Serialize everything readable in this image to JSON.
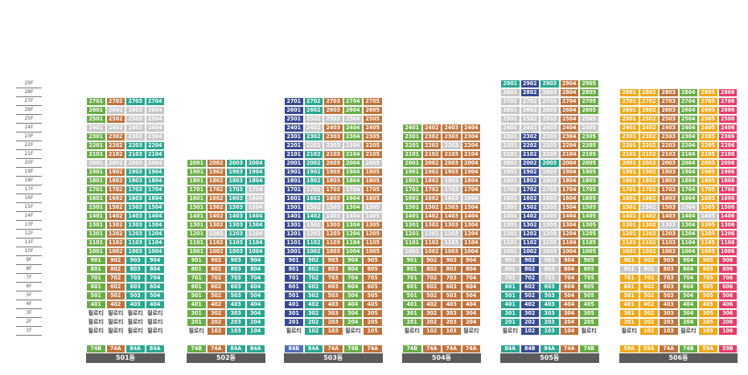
{
  "floors": [
    "29F",
    "28F",
    "27F",
    "26F",
    "25F",
    "24F",
    "23F",
    "22F",
    "21F",
    "20F",
    "19F",
    "18F",
    "17F",
    "16F",
    "15F",
    "14F",
    "13F",
    "12F",
    "11F",
    "10F",
    "9F",
    "8F",
    "7F",
    "6F",
    "5F",
    "4F",
    "3F",
    "2F",
    "1F"
  ],
  "pilotis_label": "필로티",
  "colors": {
    "orange": "#c0733c",
    "green": "#6aac46",
    "silver": "#c7c7c7",
    "teal": "#2aa792",
    "navy": "#3a4a91",
    "blue": "#4f6fb5",
    "yellow": "#f0a91b",
    "pink": "#e83e6c",
    "text": "#ffffff",
    "pilotis": "#ffffff",
    "name_bar": "#5b5b5b"
  },
  "buildings": [
    {
      "name": "501동",
      "top_floor": 27,
      "units": [
        "01",
        "02",
        "03",
        "04"
      ],
      "types": [
        [
          "74B",
          "green"
        ],
        [
          "74A",
          "orange"
        ],
        [
          "84A",
          "teal"
        ],
        [
          "84A",
          "teal"
        ]
      ],
      "ground": [
        "pilotis",
        "pilotis",
        "pilotis",
        "pilotis"
      ],
      "second": [
        "pilotis",
        "pilotis",
        "pilotis",
        "pilotis"
      ],
      "third": [
        "pilotis",
        "pilotis",
        "pilotis",
        "pilotis"
      ],
      "cols": [
        "green",
        "orange",
        "teal",
        "teal"
      ],
      "silver_floors": {
        "0": [
          24,
          20
        ],
        "1": [
          26,
          24,
          20
        ],
        "2": [
          26,
          25,
          24,
          23,
          20
        ],
        "3": [
          26,
          25,
          24,
          23,
          20
        ]
      }
    },
    {
      "name": "502동",
      "top_floor": 20,
      "units": [
        "01",
        "02",
        "03",
        "04"
      ],
      "types": [
        [
          "74B",
          "green"
        ],
        [
          "74A",
          "orange"
        ],
        [
          "84A",
          "teal"
        ],
        [
          "84A",
          "teal"
        ]
      ],
      "ground": [
        "pilotis",
        "02",
        "03",
        "04"
      ],
      "cols": [
        "green",
        "orange",
        "teal",
        "teal"
      ],
      "silver_floors": {
        "1": [
          12
        ],
        "3": [
          17,
          16,
          15,
          12
        ]
      }
    },
    {
      "name": "503동",
      "top_floor": 27,
      "units": [
        "01",
        "02",
        "03",
        "04",
        "05"
      ],
      "types": [
        [
          "84B",
          "blue"
        ],
        [
          "84A",
          "teal"
        ],
        [
          "74A",
          "orange"
        ],
        [
          "74B",
          "green"
        ],
        [
          "74A",
          "orange"
        ]
      ],
      "ground": [
        "pilotis",
        "02",
        "03",
        "pilotis",
        "05"
      ],
      "cols": [
        "navy",
        "teal",
        "orange",
        "green",
        "orange"
      ],
      "silver_floors": {
        "1": [
          25,
          24,
          22,
          17,
          15,
          13,
          12
        ],
        "2": [
          25,
          22,
          15,
          14
        ],
        "3": [
          25,
          22,
          17,
          14
        ],
        "4": [
          20,
          15,
          14
        ]
      }
    },
    {
      "name": "504동",
      "top_floor": 24,
      "units": [
        "01",
        "02",
        "03",
        "04"
      ],
      "types": [
        [
          "74B",
          "green"
        ],
        [
          "74A",
          "orange"
        ],
        [
          "74A",
          "orange"
        ],
        [
          "74A",
          "orange"
        ]
      ],
      "ground": [
        "pilotis",
        "02",
        "03",
        "pilotis"
      ],
      "cols": [
        "green",
        "orange",
        "orange",
        "orange"
      ],
      "silver_floors": {
        "0": [
          10
        ],
        "1": [
          12
        ],
        "2": [
          22,
          18,
          17,
          16,
          12,
          11
        ],
        "3": [
          16
        ]
      }
    },
    {
      "name": "505동",
      "top_floor": 29,
      "units": [
        "01",
        "02",
        "03",
        "04",
        "05"
      ],
      "types": [
        [
          "84A",
          "teal"
        ],
        [
          "84B",
          "navy"
        ],
        [
          "84A",
          "teal"
        ],
        [
          "74A",
          "orange"
        ],
        [
          "74B",
          "green"
        ]
      ],
      "ground": [
        "pilotis",
        "02",
        "03",
        "04",
        "pilotis"
      ],
      "cols": [
        "teal",
        "navy",
        "teal",
        "orange",
        "green"
      ],
      "silver_floors": {
        "0": [
          28,
          27,
          26,
          25,
          24,
          23,
          22,
          21,
          20,
          19,
          18,
          17,
          16,
          15,
          14,
          13,
          12,
          11,
          10,
          9,
          8,
          7
        ],
        "1": [
          27,
          26,
          25,
          24
        ],
        "2": [
          28,
          27,
          26,
          25,
          24,
          23,
          22,
          21,
          19,
          18,
          17,
          16,
          15,
          14,
          13,
          12,
          11,
          10,
          9,
          8,
          7
        ],
        "4": [
          25,
          24
        ]
      }
    },
    {
      "name": "506동",
      "top_floor": 28,
      "units": [
        "01",
        "02",
        "03",
        "04",
        "05",
        "06"
      ],
      "types": [
        [
          "59A",
          "yellow"
        ],
        [
          "59A",
          "yellow"
        ],
        [
          "74A",
          "orange"
        ],
        [
          "74B",
          "green"
        ],
        [
          "59A",
          "yellow"
        ],
        [
          "59B",
          "pink"
        ]
      ],
      "ground": [
        "pilotis",
        "02",
        "03",
        "pilotis",
        "05",
        "06"
      ],
      "cols": [
        "yellow",
        "yellow",
        "orange",
        "green",
        "yellow",
        "pink"
      ],
      "silver_floors": {
        "0": [
          8
        ],
        "1": [
          15,
          8
        ],
        "2": [
          13
        ],
        "3": [
          15
        ],
        "4": [
          14
        ]
      }
    }
  ]
}
